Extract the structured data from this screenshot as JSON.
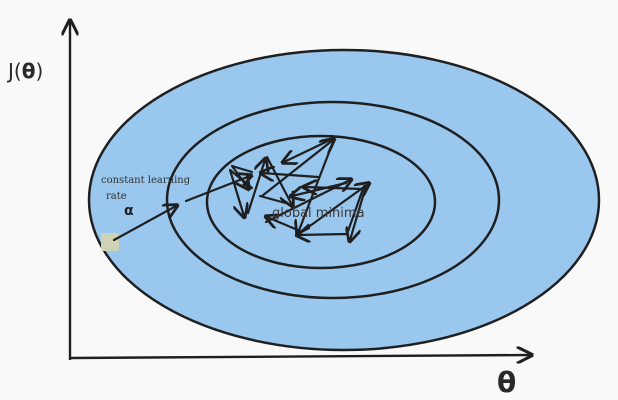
{
  "axes": {
    "y_label_prefix": "J(",
    "y_label_symbol": "θ",
    "y_label_suffix": ")",
    "x_label": "θ"
  },
  "annotations": {
    "learning_rate_line1": "constant learning",
    "learning_rate_line2": "rate",
    "alpha": "α",
    "minima": "global minima"
  },
  "colors": {
    "background": "#f9f9f9",
    "outer_fill": "#99c7ee",
    "stroke": "#1f1f1f",
    "start_marker": "#cfd3b5"
  }
}
